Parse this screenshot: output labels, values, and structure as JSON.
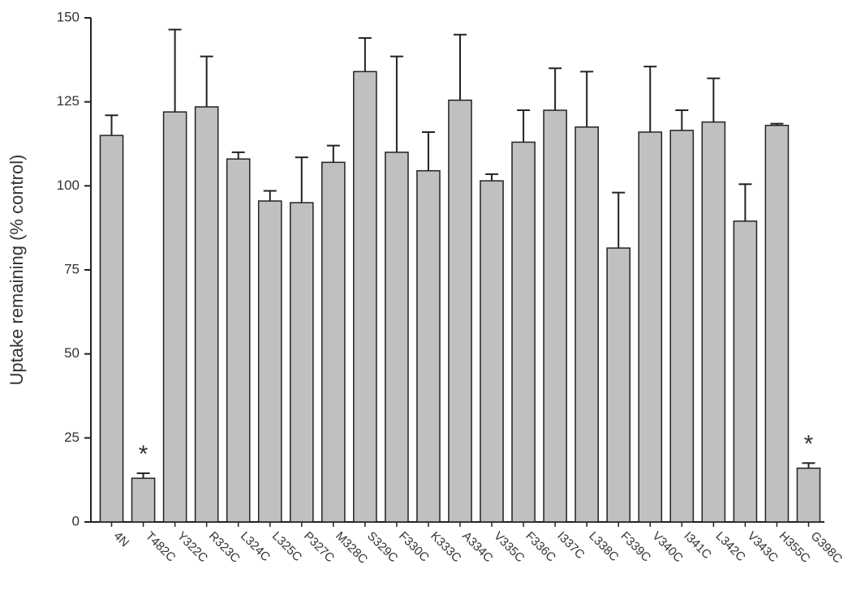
{
  "chart_data": {
    "type": "bar",
    "y_label": "Uptake remaining (% control)",
    "categories": [
      "4N",
      "T482C",
      "Y322C",
      "R323C",
      "L324C",
      "L325C",
      "P327C",
      "M328C",
      "S329C",
      "F330C",
      "K333C",
      "A334C",
      "V335C",
      "F336C",
      "I337C",
      "L338C",
      "F339C",
      "V340C",
      "I341C",
      "L342C",
      "V343C",
      "H355C",
      "G398C"
    ],
    "values": [
      115,
      13,
      122,
      123.5,
      108,
      95.5,
      95,
      107,
      134,
      110,
      104.5,
      125.5,
      101.5,
      113,
      122.5,
      117.5,
      81.5,
      116,
      116.5,
      119,
      89.5,
      118,
      16
    ],
    "errors": [
      6,
      1.5,
      24.5,
      15,
      2,
      3,
      13.5,
      5,
      10,
      28.5,
      11.5,
      19.5,
      2,
      9.5,
      12.5,
      16.5,
      16.5,
      19.5,
      6,
      13,
      11,
      0.5,
      1.5
    ],
    "color": "#c0c0c0",
    "ylim": [
      0,
      150
    ],
    "yticks": [
      0,
      25,
      50,
      75,
      100,
      125,
      150
    ],
    "grid": false,
    "annotations": [
      {
        "text": "*",
        "category": "T482C"
      },
      {
        "text": "*",
        "category": "G398C"
      }
    ]
  }
}
